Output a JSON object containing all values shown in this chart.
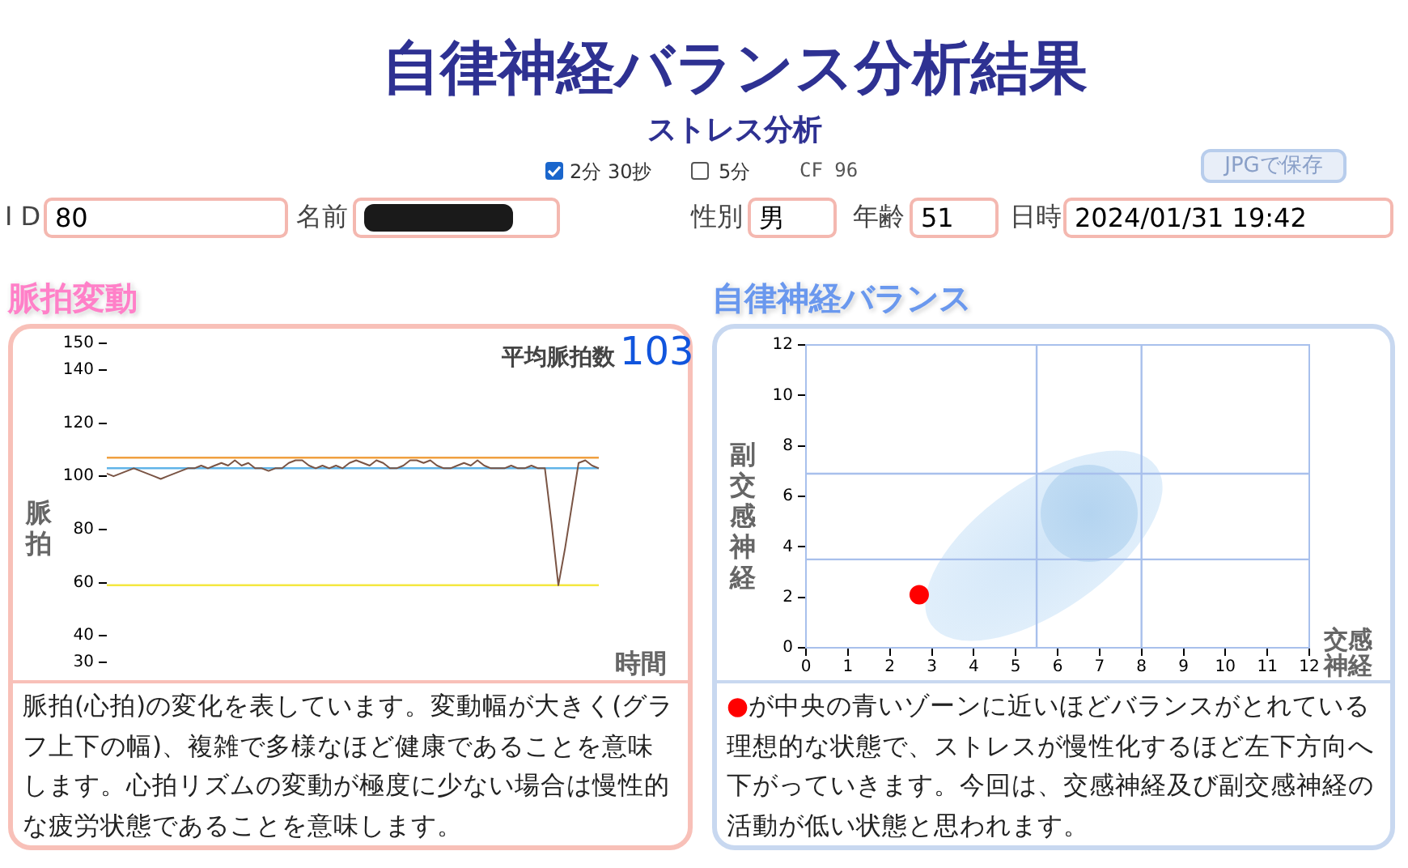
{
  "chart_data": [
    {
      "type": "other",
      "title": "自律神経バランス分析結果",
      "subtitle": "ストレス分析",
      "annotations": [
        "2分 30抄",
        "5分",
        "CF 96",
        "JPGで保存",
        "I D",
        "80",
        "名前",
        "性別",
        "男",
        "年齢",
        "51",
        "日時",
        "2024/01/31 19:42"
      ]
    },
    {
      "type": "line",
      "title": "脈拍変動",
      "xlabel": "時間",
      "ylabel": "脈拍",
      "marker": "none",
      "color": "#7a5444",
      "categories": [
        null,
        null,
        null,
        null,
        null,
        null,
        null,
        null,
        null,
        null,
        null,
        null,
        null,
        null,
        null,
        null,
        null,
        null,
        null,
        null,
        null,
        null,
        null,
        null,
        null,
        null,
        null,
        null,
        null,
        null,
        null,
        null,
        null,
        null,
        null,
        null,
        null,
        null,
        null,
        null,
        null,
        null,
        null,
        null,
        null,
        null,
        null,
        null,
        null,
        null,
        null,
        null,
        null,
        null,
        null,
        null,
        null,
        null,
        null,
        null,
        null,
        null,
        null,
        null,
        null,
        null,
        null,
        null,
        null,
        null,
        null,
        null,
        null,
        null
      ],
      "values": [
        101,
        100,
        101,
        102,
        103,
        102,
        101,
        100,
        99,
        100,
        101,
        102,
        103,
        103,
        104,
        103,
        104,
        105,
        104,
        106,
        104,
        105,
        103,
        103,
        102,
        103,
        103,
        105,
        106,
        106,
        104,
        103,
        104,
        103,
        104,
        103,
        105,
        106,
        105,
        104,
        106,
        105,
        103,
        103,
        104,
        106,
        106,
        105,
        106,
        104,
        103,
        103,
        104,
        105,
        104,
        106,
        104,
        103,
        103,
        103,
        104,
        103,
        103,
        104,
        103,
        103,
        82,
        59,
        73,
        89,
        105,
        106,
        104,
        103
      ],
      "ylim": [
        30,
        150
      ],
      "yticks": [
        30,
        40,
        60,
        80,
        100,
        120,
        140,
        150
      ],
      "ref_lines": [
        {
          "axis": "y",
          "value": 107,
          "color": "#f0a040"
        },
        {
          "axis": "y",
          "value": 103,
          "color": "#60b4e8"
        },
        {
          "axis": "y",
          "value": 59,
          "color": "#f4e840"
        }
      ],
      "annotations": [
        "平均脈拍数",
        "103",
        "脈拍(心拍)の変化を表しています。変動幅が大きく(グラフ上下の幅)、複雑で多様なほど健康であることを意味します。心拍リズムの変動が極度に少ない場合は慢性的な疲労状態であることを意味します。"
      ]
    },
    {
      "type": "scatter",
      "title": "自律神経バランス",
      "xlabel": "交感神経",
      "ylabel": "副交感神経",
      "marker": "circle",
      "color": "#ff0000",
      "x": [
        2.7
      ],
      "values": [
        2.1
      ],
      "xlim": [
        0,
        12
      ],
      "xticks": [
        0,
        1,
        2,
        3,
        4,
        5,
        6,
        7,
        8,
        9,
        10,
        11,
        12
      ],
      "ylim": [
        0,
        12
      ],
      "yticks": [
        0,
        2,
        4,
        6,
        8,
        10,
        12
      ],
      "ref_lines": [
        {
          "axis": "x",
          "value": 5.5,
          "color": "#a8c0ec"
        },
        {
          "axis": "x",
          "value": 8,
          "color": "#a8c0ec"
        },
        {
          "axis": "y",
          "value": 3.5,
          "color": "#a8c0ec"
        },
        {
          "axis": "y",
          "value": 6.9,
          "color": "#a8c0ec"
        }
      ],
      "annotations": [
        "●が中央の青いゾーンに近いほどバランスがとれている理想的な状態で、ストレスが慢性化するほど左下方向へ下がっていきます。今回は、交感神経及び副交感神経の活動が低い状態と思われます。"
      ]
    }
  ]
}
